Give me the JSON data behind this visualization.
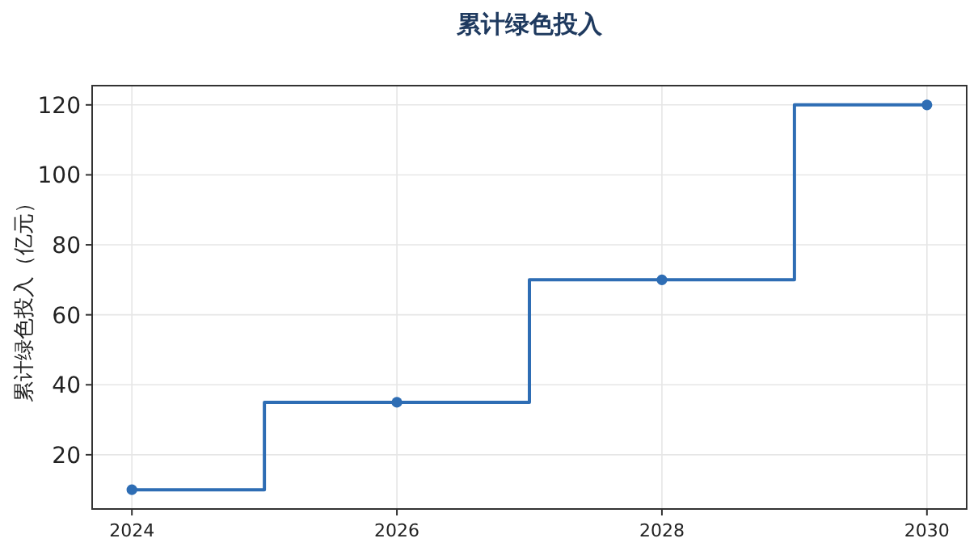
{
  "chart_data": {
    "type": "step",
    "title": "累计绿色投入",
    "ylabel": "累计绿色投入（亿元）",
    "x": [
      2024,
      2026,
      2028,
      2030
    ],
    "series": [
      {
        "color": "#2e6db4",
        "values": [
          10,
          35,
          70,
          120
        ]
      }
    ],
    "xlim": [
      2023.7,
      2030.3
    ],
    "xticks": [
      2024,
      2026,
      2028,
      2030
    ],
    "ylim": [
      4.5,
      125.5
    ],
    "yticks": [
      20,
      40,
      60,
      80,
      100,
      120
    ],
    "grid": true,
    "marker": "circle",
    "line_style": "solid"
  }
}
